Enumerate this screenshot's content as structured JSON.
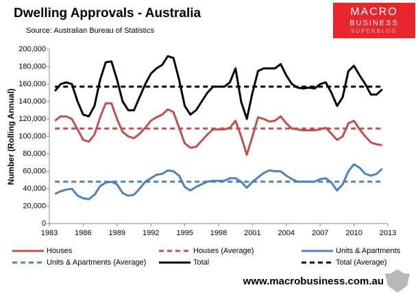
{
  "chart_data": {
    "type": "line",
    "title": "Dwelling Approvals - Australia",
    "subtitle": "Source: Australian Bureau of Statistics",
    "y_label": "Number (Rolling Annual)",
    "xlim": [
      1983,
      2013
    ],
    "xticks": [
      1983,
      1986,
      1989,
      1992,
      1995,
      1998,
      2001,
      2004,
      2007,
      2010,
      2013
    ],
    "ylim": [
      0,
      200000
    ],
    "yticks": [
      0,
      {
        "value": 20000,
        "label": "20,000"
      },
      {
        "value": 40000,
        "label": "40,000"
      },
      {
        "value": 60000,
        "label": "60,000"
      },
      {
        "value": 80000,
        "label": "80,000"
      },
      {
        "value": 100000,
        "label": "100,000"
      },
      {
        "value": 120000,
        "label": "120,000"
      },
      {
        "value": 140000,
        "label": "140,000"
      },
      {
        "value": 160000,
        "label": "160,000"
      },
      {
        "value": 180000,
        "label": "180,000"
      },
      {
        "value": 200000,
        "label": "200,000"
      }
    ],
    "x": [
      1983.5,
      1984,
      1984.5,
      1985,
      1985.5,
      1986,
      1986.5,
      1987,
      1987.5,
      1988,
      1988.5,
      1989,
      1989.5,
      1990,
      1990.5,
      1991,
      1991.5,
      1992,
      1992.5,
      1993,
      1993.5,
      1994,
      1994.5,
      1995,
      1995.5,
      1996,
      1996.5,
      1997,
      1997.5,
      1998,
      1998.5,
      1999,
      1999.5,
      2000,
      2000.5,
      2001,
      2001.5,
      2002,
      2002.5,
      2003,
      2003.5,
      2004,
      2004.5,
      2005,
      2005.5,
      2006,
      2006.5,
      2007,
      2007.5,
      2008,
      2008.5,
      2009,
      2009.5,
      2010,
      2010.5,
      2011,
      2011.5,
      2012,
      2012.5
    ],
    "series": [
      {
        "name": "Houses",
        "color": "#c0504d",
        "dashed": false,
        "values": [
          118000,
          123000,
          123000,
          120000,
          108000,
          96000,
          94000,
          102000,
          122000,
          138000,
          138000,
          120000,
          105000,
          100000,
          98000,
          103000,
          110000,
          118000,
          122000,
          125000,
          131000,
          128000,
          110000,
          92000,
          87000,
          88000,
          95000,
          102000,
          108000,
          108000,
          108000,
          110000,
          118000,
          100000,
          79000,
          100000,
          122000,
          120000,
          117000,
          118000,
          123000,
          115000,
          109000,
          108000,
          107000,
          107000,
          107000,
          108000,
          110000,
          103000,
          96000,
          100000,
          115000,
          118000,
          108000,
          100000,
          93000,
          91000,
          90000
        ]
      },
      {
        "name": "Houses (Average)",
        "color": "#c0504d",
        "dashed": true,
        "x": [
          1983.5,
          2012.5
        ],
        "values": [
          109000,
          109000
        ]
      },
      {
        "name": "Units & Apartments",
        "color": "#4f81bd",
        "dashed": false,
        "values": [
          34000,
          37000,
          39000,
          40000,
          32000,
          29000,
          28000,
          33000,
          43000,
          47000,
          48000,
          45000,
          35000,
          32000,
          33000,
          40000,
          48000,
          52000,
          56000,
          57000,
          61000,
          60000,
          55000,
          42000,
          38000,
          42000,
          45000,
          48000,
          49000,
          49000,
          49000,
          52000,
          52000,
          48000,
          41000,
          48000,
          53000,
          58000,
          61000,
          60000,
          60000,
          55000,
          51000,
          48000,
          48000,
          48000,
          48000,
          51000,
          52000,
          47000,
          38000,
          45000,
          60000,
          68000,
          64000,
          57000,
          55000,
          57000,
          63000
        ]
      },
      {
        "name": "Units & Apartments (Average)",
        "color": "#4f81bd",
        "dashed": true,
        "x": [
          1983.5,
          2012.5
        ],
        "values": [
          48000,
          48000
        ]
      },
      {
        "name": "Total",
        "color": "#000000",
        "dashed": false,
        "values": [
          152000,
          160000,
          162000,
          160000,
          140000,
          125000,
          123000,
          135000,
          165000,
          185000,
          186000,
          165000,
          140000,
          130000,
          130000,
          145000,
          160000,
          172000,
          178000,
          182000,
          192000,
          190000,
          165000,
          135000,
          125000,
          130000,
          140000,
          150000,
          157000,
          157000,
          157000,
          162000,
          178000,
          140000,
          120000,
          150000,
          175000,
          178000,
          178000,
          178000,
          183000,
          170000,
          160000,
          156000,
          155000,
          156000,
          155000,
          160000,
          162000,
          150000,
          135000,
          145000,
          175000,
          181000,
          170000,
          160000,
          148000,
          148000,
          154000
        ]
      },
      {
        "name": "Total (Average)",
        "color": "#000000",
        "dashed": true,
        "x": [
          1983.5,
          2012.5
        ],
        "values": [
          157000,
          157000
        ]
      }
    ]
  },
  "logo": {
    "line1": "MACRO",
    "line2": "BUSINESS",
    "line3": "SUPERBLOG",
    "color": "#e8262d"
  },
  "footer": "www.macrobusiness.com.au"
}
